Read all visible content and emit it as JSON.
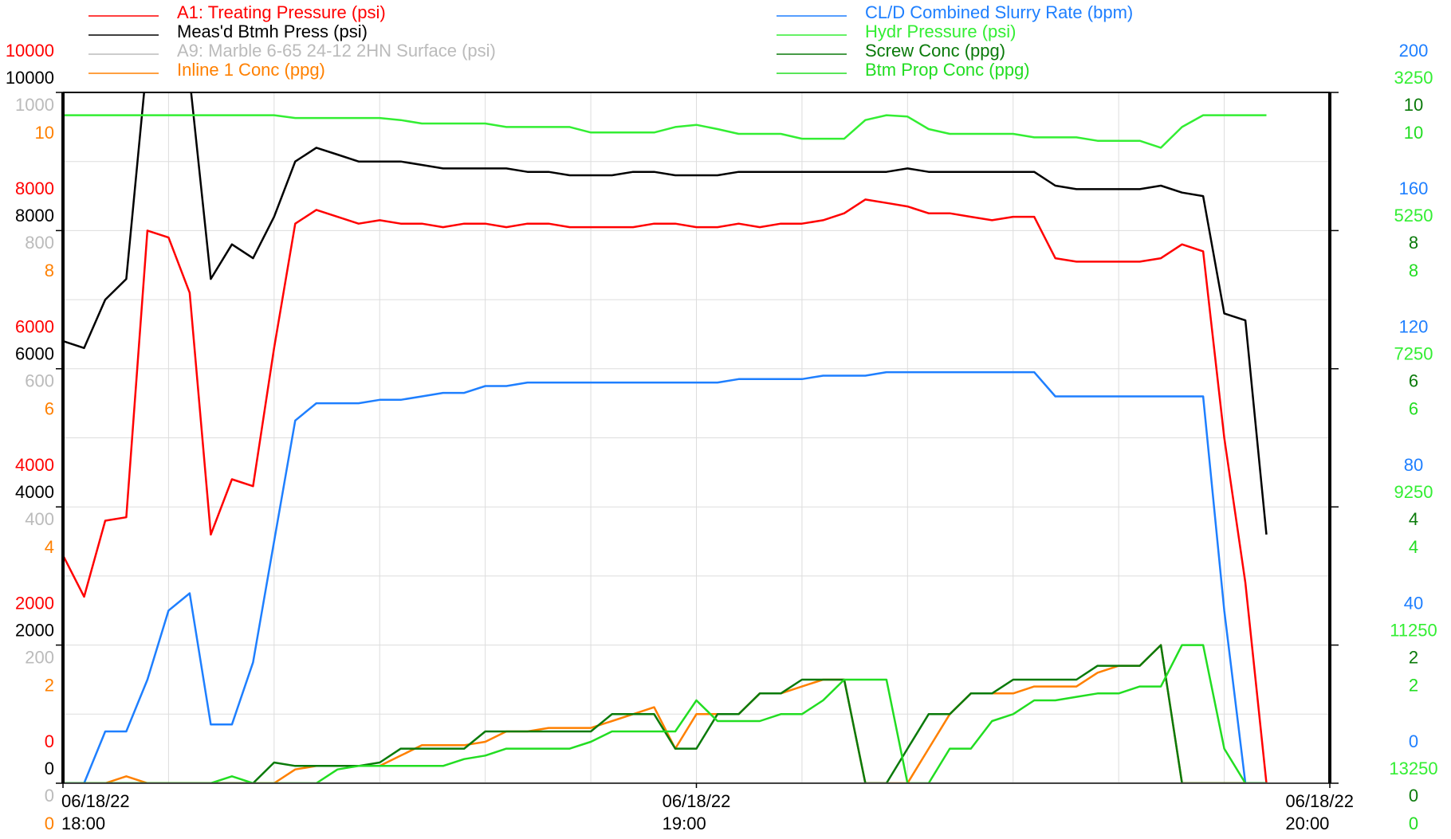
{
  "chart_data": {
    "type": "line",
    "x": [
      "06/18/22 18:00",
      "06/18/22 18:02",
      "06/18/22 18:04",
      "06/18/22 18:06",
      "06/18/22 18:08",
      "06/18/22 18:10",
      "06/18/22 18:12",
      "06/18/22 18:14",
      "06/18/22 18:16",
      "06/18/22 18:18",
      "06/18/22 18:20",
      "06/18/22 18:22",
      "06/18/22 18:24",
      "06/18/22 18:26",
      "06/18/22 18:28",
      "06/18/22 18:30",
      "06/18/22 18:32",
      "06/18/22 18:34",
      "06/18/22 18:36",
      "06/18/22 18:38",
      "06/18/22 18:40",
      "06/18/22 18:42",
      "06/18/22 18:44",
      "06/18/22 18:46",
      "06/18/22 18:48",
      "06/18/22 18:50",
      "06/18/22 18:52",
      "06/18/22 18:54",
      "06/18/22 18:56",
      "06/18/22 18:58",
      "06/18/22 19:00",
      "06/18/22 19:02",
      "06/18/22 19:04",
      "06/18/22 19:06",
      "06/18/22 19:08",
      "06/18/22 19:10",
      "06/18/22 19:12",
      "06/18/22 19:14",
      "06/18/22 19:16",
      "06/18/22 19:18",
      "06/18/22 19:20",
      "06/18/22 19:22",
      "06/18/22 19:24",
      "06/18/22 19:26",
      "06/18/22 19:28",
      "06/18/22 19:30",
      "06/18/22 19:32",
      "06/18/22 19:34",
      "06/18/22 19:36",
      "06/18/22 19:38",
      "06/18/22 19:40",
      "06/18/22 19:42",
      "06/18/22 19:44",
      "06/18/22 19:46",
      "06/18/22 19:48",
      "06/18/22 19:50",
      "06/18/22 19:52",
      "06/18/22 19:54"
    ],
    "xlim": [
      "06/18/22 18:00",
      "06/18/22 20:00"
    ],
    "xticks": [
      {
        "value": "06/18/22 18:00",
        "label": "06/18/22\n18:00"
      },
      {
        "value": "06/18/22 19:00",
        "label": "06/18/22\n19:00"
      },
      {
        "value": "06/18/22 20:00",
        "label": "06/18/22\n20:00"
      }
    ],
    "xgrid": [
      "06/18/22 18:00",
      "06/18/22 18:10",
      "06/18/22 18:20",
      "06/18/22 18:30",
      "06/18/22 18:40",
      "06/18/22 18:50",
      "06/18/22 19:00",
      "06/18/22 19:10",
      "06/18/22 19:20",
      "06/18/22 19:30",
      "06/18/22 19:40",
      "06/18/22 19:50",
      "06/18/22 20:00"
    ],
    "ygrid": [
      0,
      1000,
      2000,
      3000,
      4000,
      5000,
      6000,
      7000,
      8000,
      9000,
      10000
    ],
    "grid": true,
    "yaxes": [
      {
        "side": "left",
        "color": "#ff0000",
        "lim": [
          0,
          10000
        ],
        "ticks": [
          0,
          2000,
          4000,
          6000,
          8000,
          10000
        ]
      },
      {
        "side": "left",
        "color": "#000000",
        "lim": [
          0,
          10000
        ],
        "ticks": [
          0,
          2000,
          4000,
          6000,
          8000,
          10000
        ]
      },
      {
        "side": "left",
        "color": "#bbbbbb",
        "lim": [
          0,
          1000
        ],
        "ticks": [
          0,
          200,
          400,
          600,
          800,
          1000
        ]
      },
      {
        "side": "left",
        "color": "#ff8000",
        "lim": [
          0,
          10
        ],
        "ticks": [
          0,
          2,
          4,
          6,
          8,
          10
        ]
      },
      {
        "side": "right",
        "color": "#1e7fff",
        "lim": [
          0,
          200
        ],
        "ticks": [
          0,
          40,
          80,
          120,
          160,
          200
        ]
      },
      {
        "side": "right",
        "color": "#33ee33",
        "lim": [
          13250,
          3250
        ],
        "ticks": [
          13250,
          11250,
          9250,
          7250,
          5250,
          3250
        ]
      },
      {
        "side": "right",
        "color": "#0a7a0a",
        "lim": [
          0,
          10
        ],
        "ticks": [
          0,
          2,
          4,
          6,
          8,
          10
        ]
      },
      {
        "side": "right",
        "color": "#22dd22",
        "lim": [
          0,
          10
        ],
        "ticks": [
          0,
          2,
          4,
          6,
          8,
          10
        ]
      }
    ],
    "series": [
      {
        "name": "A1: Treating Pressure (psi)",
        "color": "#ff0000",
        "axis": 0,
        "values": [
          3300,
          2700,
          3800,
          3850,
          8000,
          7900,
          7100,
          3600,
          4400,
          4300,
          6300,
          8100,
          8300,
          8200,
          8100,
          8150,
          8100,
          8100,
          8050,
          8100,
          8100,
          8050,
          8100,
          8100,
          8050,
          8050,
          8050,
          8050,
          8100,
          8100,
          8050,
          8050,
          8100,
          8050,
          8100,
          8100,
          8150,
          8250,
          8450,
          8400,
          8350,
          8250,
          8250,
          8200,
          8150,
          8200,
          8200,
          7600,
          7550,
          7550,
          7550,
          7550,
          7600,
          7800,
          7700,
          5000,
          2900,
          0
        ]
      },
      {
        "name": "Meas'd Btmh Press (psi)",
        "color": "#000000",
        "axis": 1,
        "values": [
          6400,
          6300,
          7000,
          7300,
          10500,
          10500,
          10200,
          7300,
          7800,
          7600,
          8200,
          9000,
          9200,
          9100,
          9000,
          9000,
          9000,
          8950,
          8900,
          8900,
          8900,
          8900,
          8850,
          8850,
          8800,
          8800,
          8800,
          8850,
          8850,
          8800,
          8800,
          8800,
          8850,
          8850,
          8850,
          8850,
          8850,
          8850,
          8850,
          8850,
          8900,
          8850,
          8850,
          8850,
          8850,
          8850,
          8850,
          8650,
          8600,
          8600,
          8600,
          8600,
          8650,
          8550,
          8500,
          6800,
          6700,
          3600
        ]
      },
      {
        "name": "A9: Marble 6-65 24-12 2HN Surface (psi)",
        "color": "#bbbbbb",
        "axis": 2,
        "values": [
          0,
          0,
          0,
          0,
          0,
          0,
          0,
          0,
          0,
          0,
          0,
          0,
          0,
          0,
          0,
          0,
          0,
          0,
          0,
          0,
          0,
          0,
          0,
          0,
          0,
          0,
          0,
          0,
          0,
          0,
          0,
          0,
          0,
          0,
          0,
          0,
          0,
          0,
          0,
          0,
          0,
          0,
          0,
          0,
          0,
          0,
          0,
          0,
          0,
          0,
          0,
          0,
          0,
          0,
          0,
          0,
          0,
          0
        ]
      },
      {
        "name": "Inline 1 Conc (ppg)",
        "color": "#ff8000",
        "axis": 3,
        "values": [
          0,
          0,
          0,
          0.1,
          0,
          0,
          0,
          0,
          0,
          0,
          0,
          0.2,
          0.25,
          0.25,
          0.25,
          0.25,
          0.4,
          0.55,
          0.55,
          0.55,
          0.6,
          0.75,
          0.75,
          0.8,
          0.8,
          0.8,
          0.9,
          1.0,
          1.1,
          0.5,
          1.0,
          1.0,
          1.0,
          1.3,
          1.3,
          1.4,
          1.5,
          1.5,
          0,
          0,
          0,
          0.5,
          1.0,
          1.3,
          1.3,
          1.3,
          1.4,
          1.4,
          1.4,
          1.6,
          1.7,
          1.7,
          2.0,
          0,
          0,
          0,
          0,
          0
        ]
      },
      {
        "name": "CL/D Combined Slurry Rate (bpm)",
        "color": "#1e7fff",
        "axis": 4,
        "values": [
          0,
          0,
          15,
          15,
          30,
          50,
          55,
          17,
          17,
          35,
          70,
          105,
          110,
          110,
          110,
          111,
          111,
          112,
          113,
          113,
          115,
          115,
          116,
          116,
          116,
          116,
          116,
          116,
          116,
          116,
          116,
          116,
          117,
          117,
          117,
          117,
          118,
          118,
          118,
          119,
          119,
          119,
          119,
          119,
          119,
          119,
          119,
          112,
          112,
          112,
          112,
          112,
          112,
          112,
          112,
          50,
          0,
          0
        ]
      },
      {
        "name": "Hydr Pressure (psi)",
        "color": "#33ee33",
        "axis": 5,
        "values": [
          3580,
          3580,
          3580,
          3580,
          3580,
          3580,
          3580,
          3580,
          3580,
          3580,
          3580,
          3620,
          3620,
          3620,
          3620,
          3620,
          3650,
          3700,
          3700,
          3700,
          3700,
          3750,
          3750,
          3750,
          3750,
          3830,
          3830,
          3830,
          3830,
          3750,
          3720,
          3780,
          3850,
          3850,
          3850,
          3920,
          3920,
          3920,
          3650,
          3580,
          3600,
          3780,
          3850,
          3850,
          3850,
          3850,
          3900,
          3900,
          3900,
          3950,
          3950,
          3950,
          4050,
          3750,
          3580,
          3580,
          3580,
          3580
        ]
      },
      {
        "name": "Screw Conc (ppg)",
        "color": "#0a7a0a",
        "axis": 6,
        "values": [
          0,
          0,
          0,
          0,
          0,
          0,
          0,
          0,
          0,
          0,
          0.3,
          0.25,
          0.25,
          0.25,
          0.25,
          0.3,
          0.5,
          0.5,
          0.5,
          0.5,
          0.75,
          0.75,
          0.75,
          0.75,
          0.75,
          0.75,
          1.0,
          1.0,
          1.0,
          0.5,
          0.5,
          1.0,
          1.0,
          1.3,
          1.3,
          1.5,
          1.5,
          1.5,
          0,
          0,
          0.5,
          1.0,
          1.0,
          1.3,
          1.3,
          1.5,
          1.5,
          1.5,
          1.5,
          1.7,
          1.7,
          1.7,
          2.0,
          0,
          0,
          0,
          0,
          0
        ]
      },
      {
        "name": "Btm Prop Conc (ppg)",
        "color": "#22dd22",
        "axis": 7,
        "values": [
          0,
          0,
          0,
          0,
          0,
          0,
          0,
          0,
          0.1,
          0,
          0,
          0,
          0,
          0.2,
          0.25,
          0.25,
          0.25,
          0.25,
          0.25,
          0.35,
          0.4,
          0.5,
          0.5,
          0.5,
          0.5,
          0.6,
          0.75,
          0.75,
          0.75,
          0.75,
          1.2,
          0.9,
          0.9,
          0.9,
          1.0,
          1.0,
          1.2,
          1.5,
          1.5,
          1.5,
          0,
          0,
          0.5,
          0.5,
          0.9,
          1.0,
          1.2,
          1.2,
          1.25,
          1.3,
          1.3,
          1.4,
          1.4,
          2.0,
          2.0,
          0.5,
          0,
          0
        ]
      }
    ]
  }
}
